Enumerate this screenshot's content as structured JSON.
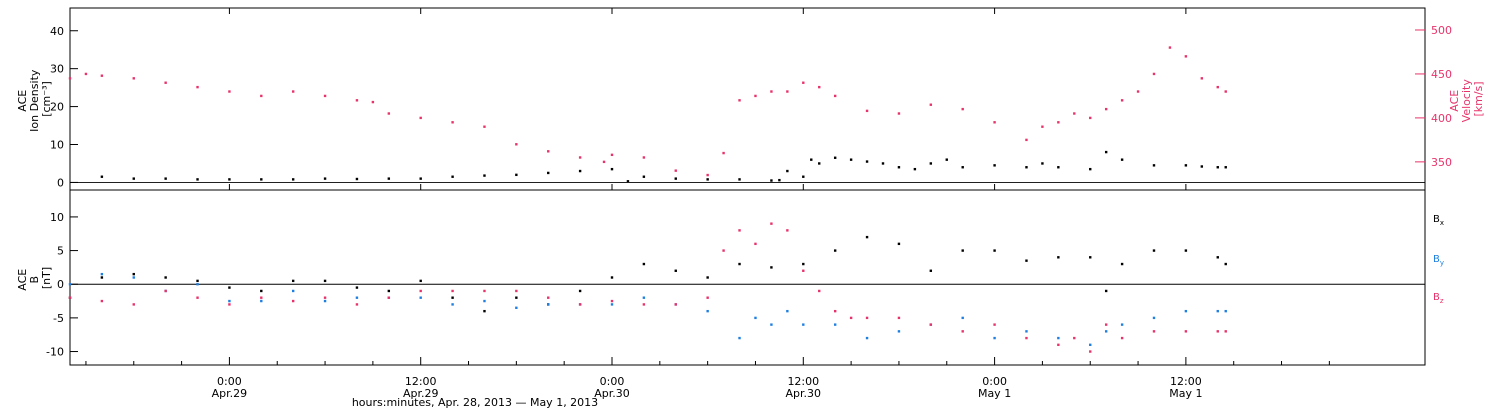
{
  "colors": {
    "black": "#000000",
    "pink": "#e8336a",
    "blue": "#1f7fe0"
  },
  "chart_data": [
    {
      "type": "scatter",
      "panel": "plasma",
      "ylabel_lines": [
        "ACE",
        "Ion Density",
        "[cm⁻³]"
      ],
      "y2label_lines": [
        "ACE",
        "Velocity",
        "[km/s]"
      ],
      "ylim": [
        -2,
        46
      ],
      "y2lim": [
        318,
        525
      ],
      "yticks": [
        "0",
        "10",
        "20",
        "30",
        "40"
      ],
      "y2ticks": [
        "350",
        "400",
        "450",
        "500"
      ],
      "series": [
        {
          "axis": "left",
          "color": "black",
          "x": [
            -8,
            -6,
            -4,
            -2,
            0,
            2,
            4,
            6,
            8,
            10,
            12,
            14,
            16,
            18,
            20,
            22,
            24,
            25,
            26,
            28,
            30,
            32,
            34,
            34.5,
            35,
            36,
            36.5,
            37,
            38,
            39,
            40,
            41,
            42,
            43,
            44,
            45,
            46,
            48,
            50,
            51,
            52,
            54,
            55,
            56,
            58,
            60,
            61,
            62,
            62.5
          ],
          "y": [
            1.5,
            1.0,
            1.0,
            0.8,
            0.8,
            0.8,
            0.8,
            1.0,
            0.9,
            1.0,
            1.0,
            1.5,
            1.8,
            2.0,
            2.5,
            3.0,
            3.5,
            0.3,
            1.5,
            1.0,
            0.8,
            0.8,
            0.5,
            0.6,
            3.0,
            1.5,
            6.0,
            5.0,
            6.5,
            6.0,
            5.5,
            5.0,
            4.0,
            3.5,
            5.0,
            6.0,
            4.0,
            4.5,
            4.0,
            5.0,
            4.0,
            3.5,
            8.0,
            6.0,
            4.5,
            4.5,
            4.2,
            4.0,
            4.0
          ]
        },
        {
          "axis": "right",
          "color": "pink",
          "x": [
            -10,
            -9,
            -8,
            -6,
            -4,
            -2,
            0,
            2,
            4,
            6,
            8,
            9,
            10,
            12,
            14,
            16,
            18,
            20,
            22,
            23.5,
            24,
            26,
            28,
            30,
            31,
            32,
            33,
            34,
            35,
            36,
            37,
            38,
            40,
            42,
            44,
            46,
            48,
            50,
            51,
            52,
            53,
            54,
            55,
            56,
            57,
            58,
            59,
            60,
            61,
            62,
            62.5
          ],
          "y": [
            445,
            450,
            448,
            445,
            440,
            435,
            430,
            425,
            430,
            425,
            420,
            418,
            405,
            400,
            395,
            390,
            370,
            362,
            355,
            350,
            358,
            355,
            340,
            335,
            360,
            420,
            425,
            430,
            430,
            440,
            435,
            425,
            408,
            405,
            415,
            410,
            395,
            375,
            390,
            395,
            405,
            400,
            410,
            420,
            430,
            450,
            480,
            470,
            445,
            435,
            430
          ]
        }
      ]
    },
    {
      "type": "scatter",
      "panel": "magnetic-field",
      "ylabel_lines": [
        "ACE",
        "B",
        "[nT]"
      ],
      "ylim": [
        -12,
        14
      ],
      "yticks": [
        "-10",
        "-5",
        "0",
        "5",
        "10"
      ],
      "legend": [
        {
          "label": "B",
          "sub": "x",
          "color": "black"
        },
        {
          "label": "B",
          "sub": "y",
          "color": "blue"
        },
        {
          "label": "B",
          "sub": "z",
          "color": "pink"
        }
      ],
      "series": [
        {
          "color": "black",
          "x": [
            -10,
            -8,
            -6,
            -4,
            -2,
            0,
            2,
            4,
            6,
            8,
            10,
            12,
            14,
            16,
            18,
            20,
            22,
            24,
            26,
            28,
            30,
            32,
            34,
            36,
            38,
            40,
            42,
            44,
            46,
            48,
            50,
            52,
            54,
            55,
            56,
            58,
            60,
            62,
            62.5
          ],
          "y": [
            -2,
            1,
            1.5,
            1,
            0.5,
            -0.5,
            -1,
            0.5,
            0.5,
            -0.5,
            -1,
            0.5,
            -2,
            -4,
            -2,
            -3,
            -1,
            1,
            3,
            2,
            1,
            3,
            2.5,
            3,
            5,
            7,
            6,
            2,
            5,
            5,
            3.5,
            4,
            4,
            -1,
            3,
            5,
            5,
            4,
            3
          ]
        },
        {
          "color": "blue",
          "x": [
            -10,
            -8,
            -6,
            -4,
            -2,
            0,
            2,
            4,
            6,
            8,
            10,
            12,
            14,
            16,
            18,
            20,
            22,
            24,
            26,
            28,
            30,
            32,
            33,
            34,
            35,
            36,
            38,
            40,
            42,
            44,
            46,
            48,
            50,
            52,
            54,
            55,
            56,
            58,
            60,
            62,
            62.5
          ],
          "y": [
            0,
            1.5,
            1,
            -1,
            0,
            -2.5,
            -2.5,
            -1,
            -2.5,
            -2,
            -2,
            -2,
            -3,
            -2.5,
            -3.5,
            -3,
            -3,
            -3,
            -2,
            -3,
            -4,
            -8,
            -5,
            -6,
            -4,
            -6,
            -6,
            -8,
            -7,
            -6,
            -5,
            -8,
            -7,
            -8,
            -9,
            -7,
            -6,
            -5,
            -4,
            -4,
            -4
          ]
        },
        {
          "color": "pink",
          "x": [
            -10,
            -8,
            -6,
            -4,
            -2,
            0,
            2,
            4,
            6,
            8,
            10,
            12,
            14,
            16,
            18,
            20,
            22,
            24,
            26,
            28,
            30,
            31,
            32,
            33,
            34,
            35,
            36,
            37,
            38,
            39,
            40,
            42,
            44,
            46,
            48,
            50,
            52,
            53,
            54,
            55,
            56,
            58,
            60,
            62,
            62.5
          ],
          "y": [
            -2,
            -2.5,
            -3,
            -1,
            -2,
            -3,
            -2,
            -2.5,
            -2,
            -3,
            -2,
            -1,
            -1,
            -1,
            -1,
            -2,
            -3,
            -2.5,
            -3,
            -3,
            -2,
            5,
            8,
            6,
            9,
            8,
            2,
            -1,
            -4,
            -5,
            -5,
            -5,
            -6,
            -7,
            -6,
            -8,
            -9,
            -8,
            -10,
            -6,
            -8,
            -7,
            -7,
            -7,
            -7
          ]
        }
      ]
    }
  ],
  "xaxis": {
    "xlim": [
      -10,
      75
    ],
    "ticks": [
      {
        "x": 0,
        "line1": "0:00",
        "line2": "Apr.29"
      },
      {
        "x": 12,
        "line1": "12:00",
        "line2": "Apr.29"
      },
      {
        "x": 24,
        "line1": "0:00",
        "line2": "Apr.30"
      },
      {
        "x": 36,
        "line1": "12:00",
        "line2": "Apr.30"
      },
      {
        "x": 48,
        "line1": "0:00",
        "line2": "May 1"
      },
      {
        "x": 60,
        "line1": "12:00",
        "line2": "May 1"
      }
    ],
    "label": "hours:minutes, Apr. 28, 2013 — May  1, 2013"
  }
}
